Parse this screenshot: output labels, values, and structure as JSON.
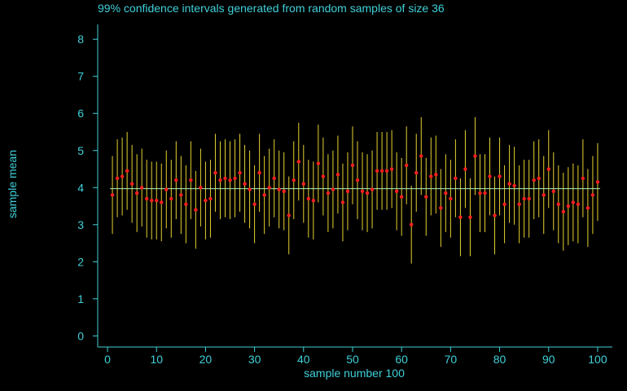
{
  "chart_data": {
    "type": "scatter",
    "title": "99% confidence intervals generated from random samples of size 36",
    "xlabel": "sample number 100",
    "ylabel": "sample mean",
    "xlim": [
      -2,
      103
    ],
    "ylim": [
      -0.3,
      8.4
    ],
    "xticks": [
      0,
      10,
      20,
      30,
      40,
      50,
      60,
      70,
      80,
      90,
      100
    ],
    "yticks": [
      0,
      1,
      2,
      3,
      4,
      5,
      6,
      7,
      8
    ],
    "reference_mean": 3.97,
    "margin": 1.05,
    "grid": false,
    "colors": {
      "axis": "#3fd0d8",
      "interval": "#e6d230",
      "point": "#ff2020",
      "mean_line": "#b0f0b0",
      "background": "#000000"
    },
    "series": [
      {
        "x": [
          1,
          2,
          3,
          4,
          5,
          6,
          7,
          8,
          9,
          10,
          11,
          12,
          13,
          14,
          15,
          16,
          17,
          18,
          19,
          20,
          21,
          22,
          23,
          24,
          25,
          26,
          27,
          28,
          29,
          30,
          31,
          32,
          33,
          34,
          35,
          36,
          37,
          38,
          39,
          40,
          41,
          42,
          43,
          44,
          45,
          46,
          47,
          48,
          49,
          50,
          51,
          52,
          53,
          54,
          55,
          56,
          57,
          58,
          59,
          60,
          61,
          62,
          63,
          64,
          65,
          66,
          67,
          68,
          69,
          70,
          71,
          72,
          73,
          74,
          75,
          76,
          77,
          78,
          79,
          80,
          81,
          82,
          83,
          84,
          85,
          86,
          87,
          88,
          89,
          90,
          91,
          92,
          93,
          94,
          95,
          96,
          97,
          98,
          99,
          100
        ],
        "values": [
          3.8,
          4.25,
          4.3,
          4.45,
          4.1,
          3.85,
          4.0,
          3.7,
          3.65,
          3.65,
          3.6,
          3.95,
          3.7,
          4.2,
          3.8,
          3.55,
          4.2,
          3.4,
          4.0,
          3.65,
          3.7,
          4.4,
          4.2,
          4.25,
          4.2,
          4.25,
          4.4,
          4.1,
          3.95,
          3.55,
          4.4,
          3.8,
          4.0,
          4.25,
          3.95,
          3.9,
          3.25,
          4.2,
          4.7,
          4.1,
          3.7,
          3.65,
          4.65,
          4.3,
          3.85,
          3.95,
          4.35,
          3.6,
          3.9,
          4.6,
          4.2,
          3.9,
          3.85,
          3.95,
          4.45,
          4.45,
          4.45,
          4.5,
          3.9,
          3.75,
          4.6,
          3.0,
          4.4,
          4.85,
          3.75,
          4.3,
          4.35,
          3.45,
          3.85,
          3.7,
          4.25,
          3.2,
          4.5,
          3.2,
          4.85,
          3.85,
          3.85,
          4.3,
          3.25,
          4.3,
          3.55,
          4.1,
          4.05,
          3.55,
          3.7,
          3.7,
          4.2,
          4.25,
          3.8,
          4.5,
          3.9,
          3.55,
          3.35,
          3.5,
          3.6,
          3.55,
          4.25,
          3.45,
          3.8,
          4.15
        ]
      }
    ]
  }
}
